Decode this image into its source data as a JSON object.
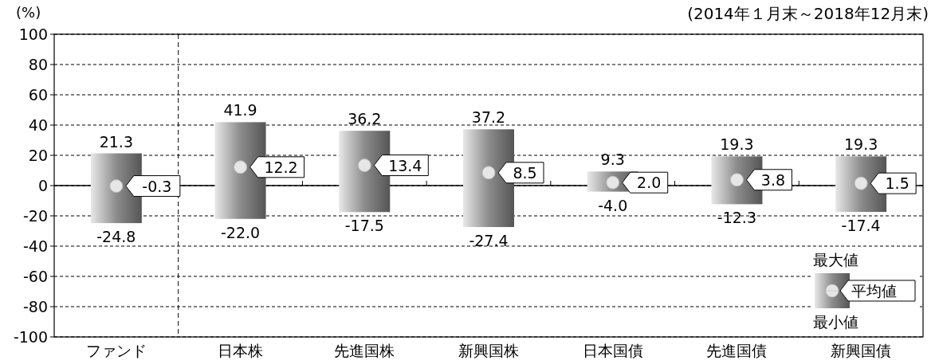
{
  "chart_data": {
    "type": "bar",
    "subtitle": "(2014年１月末～2018年12月末)",
    "ylabel": "(%)",
    "categories": [
      "ファンド",
      "日本株",
      "先進国株",
      "新興国株",
      "日本国債",
      "先進国債",
      "新興国債"
    ],
    "series": [
      {
        "color": "#8c8c8c",
        "base": [
          -24.8,
          -22.0,
          -17.5,
          -27.4,
          -4.0,
          -12.3,
          -17.4
        ],
        "values": [
          46.1,
          63.9,
          53.7,
          64.6,
          13.3,
          31.6,
          36.7
        ]
      },
      {
        "type": "scatter",
        "color": "#e6e6e6",
        "x": [
          "ファンド",
          "日本株",
          "先進国株",
          "新興国株",
          "日本国債",
          "先進国債",
          "新興国債"
        ],
        "values": [
          -0.3,
          12.2,
          13.4,
          8.5,
          2.0,
          3.8,
          1.5
        ],
        "value_labels": [
          "-0.3",
          "12.2",
          "13.4",
          "8.5",
          "2.0",
          "3.8",
          "1.5"
        ]
      }
    ],
    "annotations": [
      {
        "text": "21.3",
        "x": "ファンド",
        "y": 21.3
      },
      {
        "text": "41.9",
        "x": "日本株",
        "y": 41.9
      },
      {
        "text": "36.2",
        "x": "先進国株",
        "y": 36.2
      },
      {
        "text": "37.2",
        "x": "新興国株",
        "y": 37.2
      },
      {
        "text": "9.3",
        "x": "日本国債",
        "y": 9.3
      },
      {
        "text": "19.3",
        "x": "先進国債",
        "y": 19.3
      },
      {
        "text": "19.3",
        "x": "新興国債",
        "y": 19.3
      },
      {
        "text": "-24.8",
        "x": "ファンド",
        "y": -24.8
      },
      {
        "text": "-22.0",
        "x": "日本株",
        "y": -22.0
      },
      {
        "text": "-17.5",
        "x": "先進国株",
        "y": -17.5
      },
      {
        "text": "-27.4",
        "x": "新興国株",
        "y": -27.4
      },
      {
        "text": "-4.0",
        "x": "日本国債",
        "y": -4.0
      },
      {
        "text": "-12.3",
        "x": "先進国債",
        "y": -12.3
      },
      {
        "text": "-17.4",
        "x": "新興国債",
        "y": -17.4
      },
      "最大値",
      "平均値",
      "最小値"
    ],
    "ylim": [
      -100,
      100
    ],
    "yticks": [
      -100,
      -80,
      -60,
      -40,
      -20,
      0,
      20,
      40,
      60,
      80,
      100
    ],
    "grid": "y",
    "marker": "circle",
    "ref_lines": [
      {
        "axis": "y",
        "value": 0,
        "line_style": "solid",
        "color": "#000000"
      }
    ]
  }
}
